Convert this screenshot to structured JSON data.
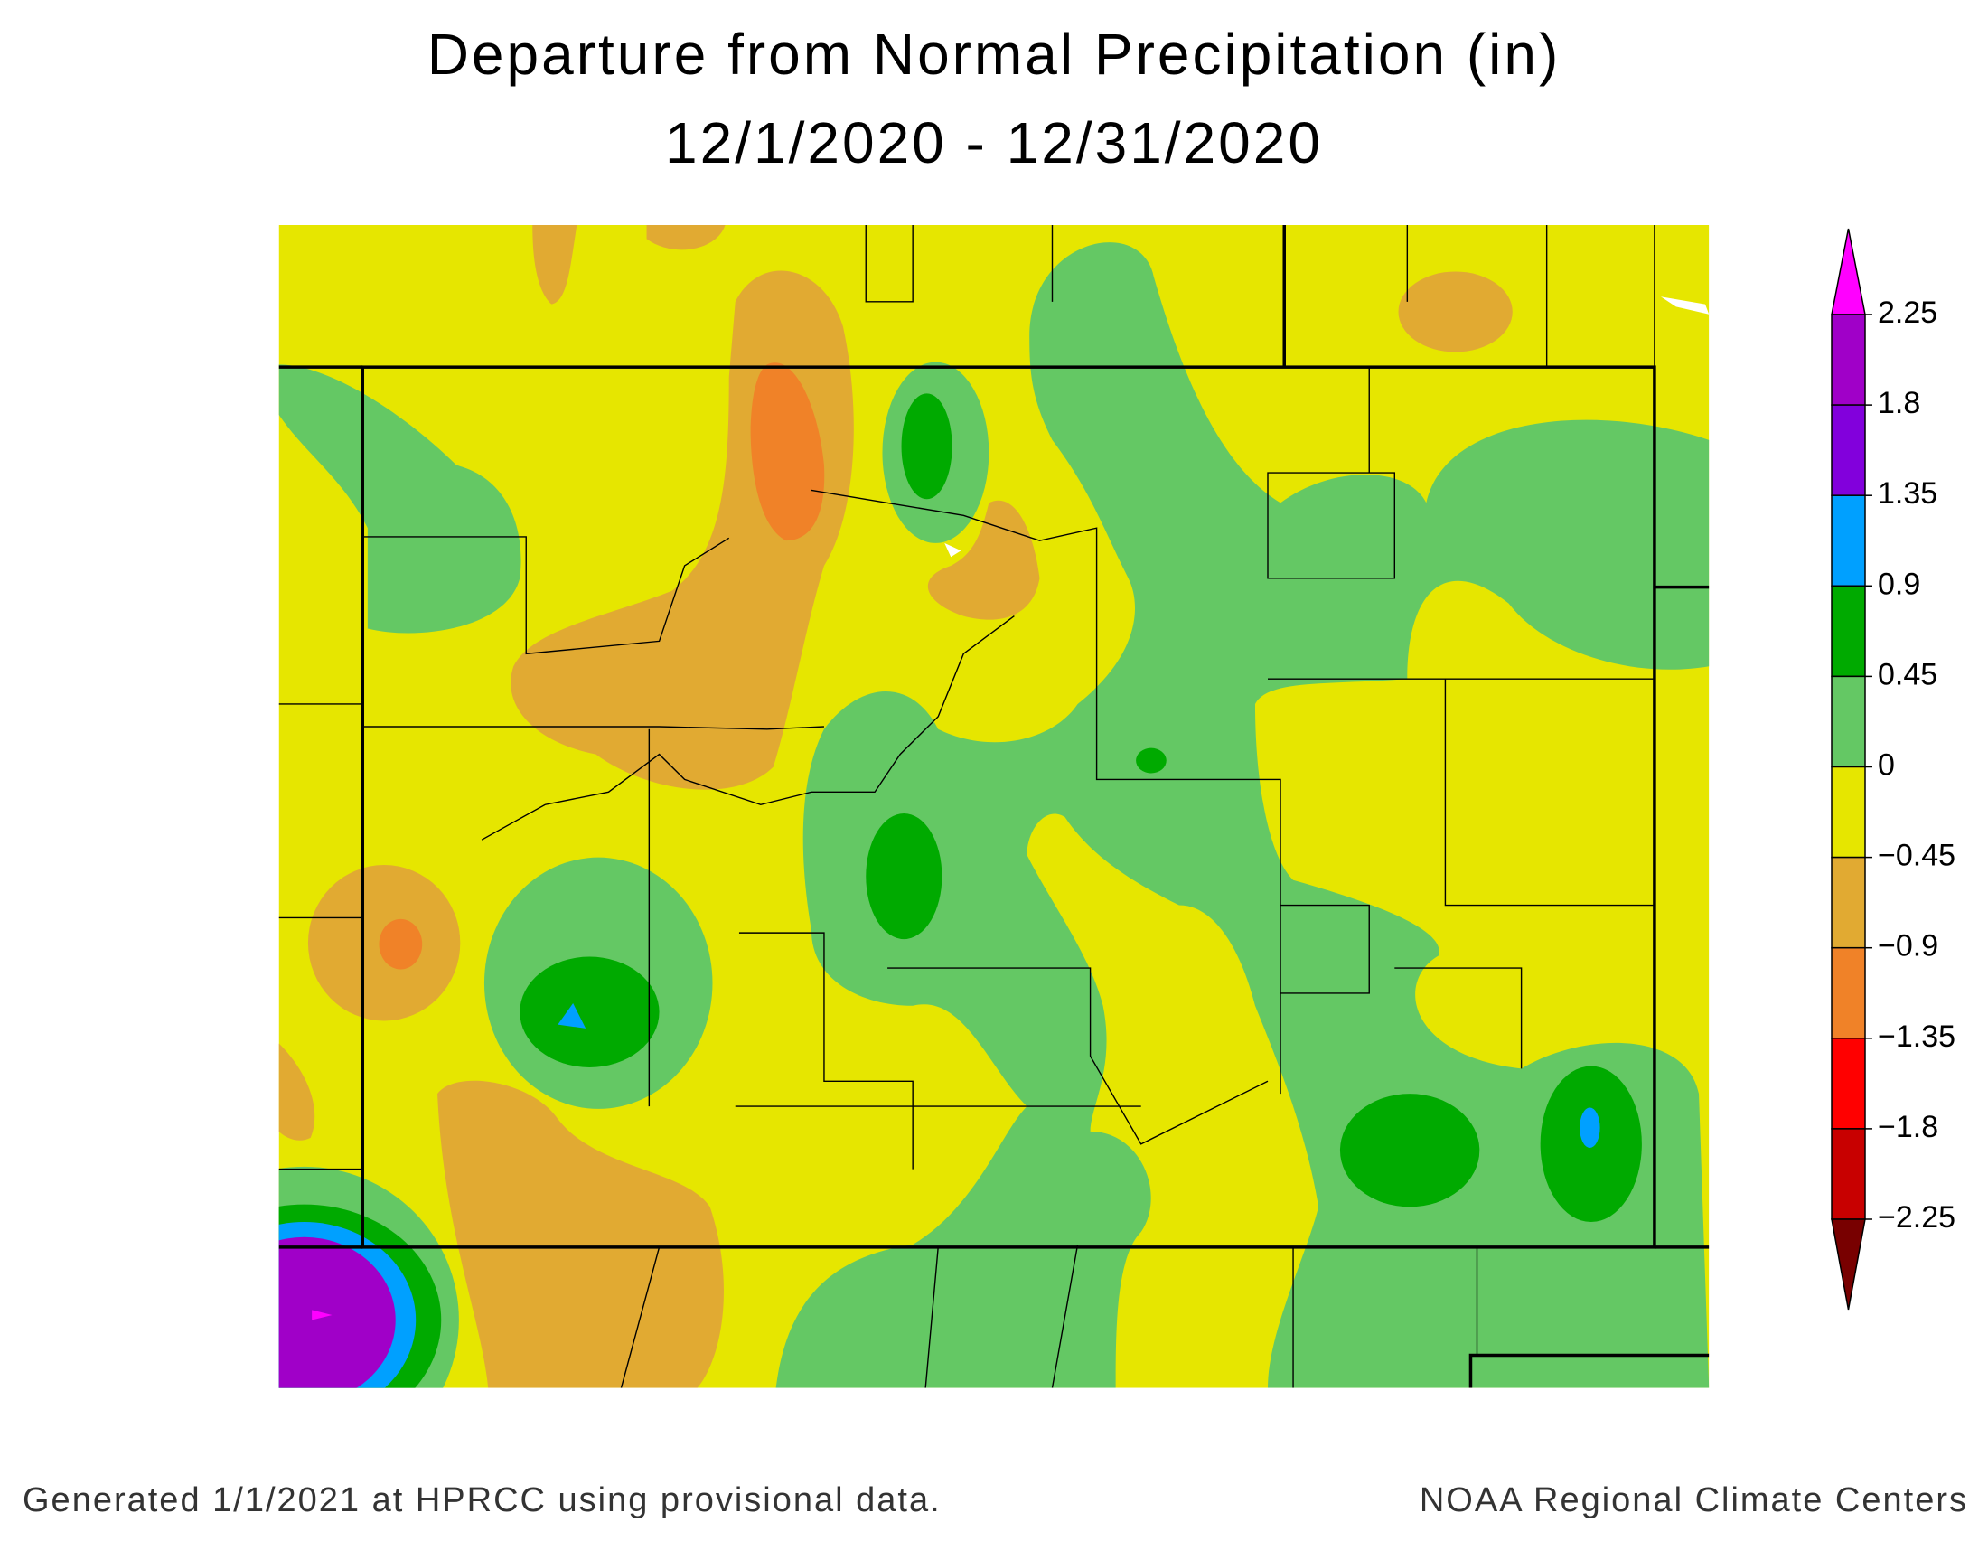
{
  "map": {
    "title": "Departure from Normal Precipitation (in)",
    "subtitle": "12/1/2020 - 12/31/2020",
    "colorbar": {
      "ticks": [
        2.25,
        1.8,
        1.35,
        0.9,
        0.45,
        0,
        {
          "value": -0.45,
          "label": "−0.45"
        },
        {
          "value": -0.9,
          "label": "−0.9"
        },
        {
          "value": -1.35,
          "label": "−1.35"
        },
        {
          "value": -1.8,
          "label": "−1.8"
        },
        {
          "value": -2.25,
          "label": "−2.25"
        }
      ],
      "colors": [
        "#ff00ff",
        "#a000c8",
        "#8200dc",
        "#00a0ff",
        "#00aa00",
        "#64c864",
        "#e6e600",
        "#e1aa32",
        "#f08228",
        "#ff0000",
        "#c80000",
        "#780000"
      ]
    },
    "footer_left": "Generated 1/1/2021 at HPRCC using provisional data.",
    "footer_right": "NOAA Regional Climate Centers"
  }
}
